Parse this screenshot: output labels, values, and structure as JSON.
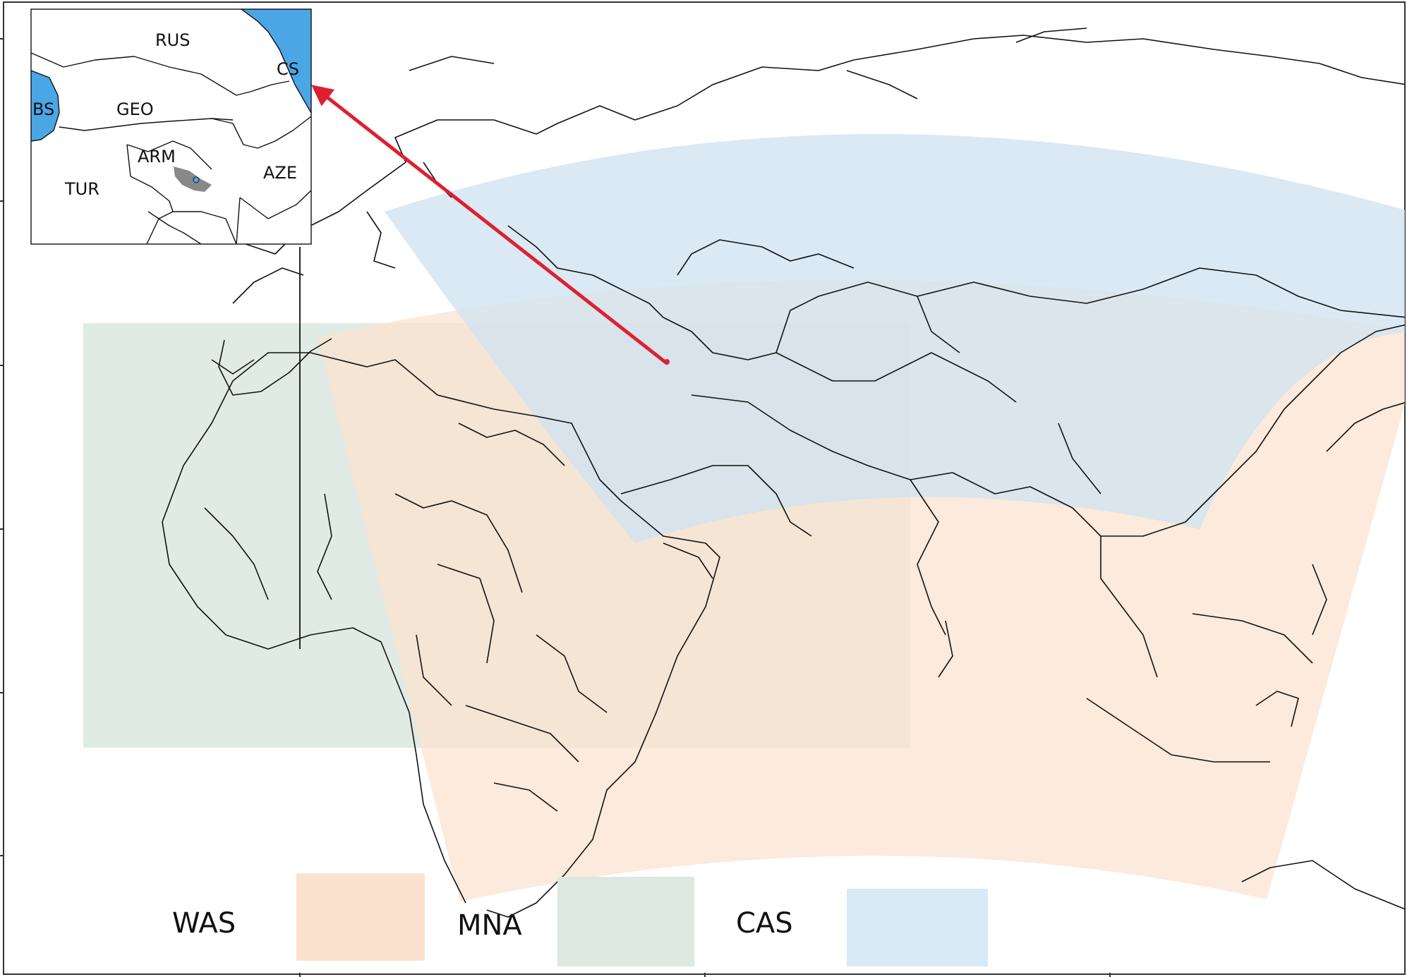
{
  "inset": {
    "labels": [
      "RUS",
      "GEO",
      "ARM",
      "TUR",
      "AZE",
      "BS",
      "CS"
    ]
  },
  "legend": {
    "items": [
      {
        "label": "WAS",
        "color": "#fbe2cf"
      },
      {
        "label": "MNA",
        "color": "#dce8e0"
      },
      {
        "label": "CAS",
        "color": "#d8eaf5"
      }
    ]
  },
  "colors": {
    "water": "#4ba6e6",
    "arrow": "#dd2030",
    "frame": "#333333"
  }
}
